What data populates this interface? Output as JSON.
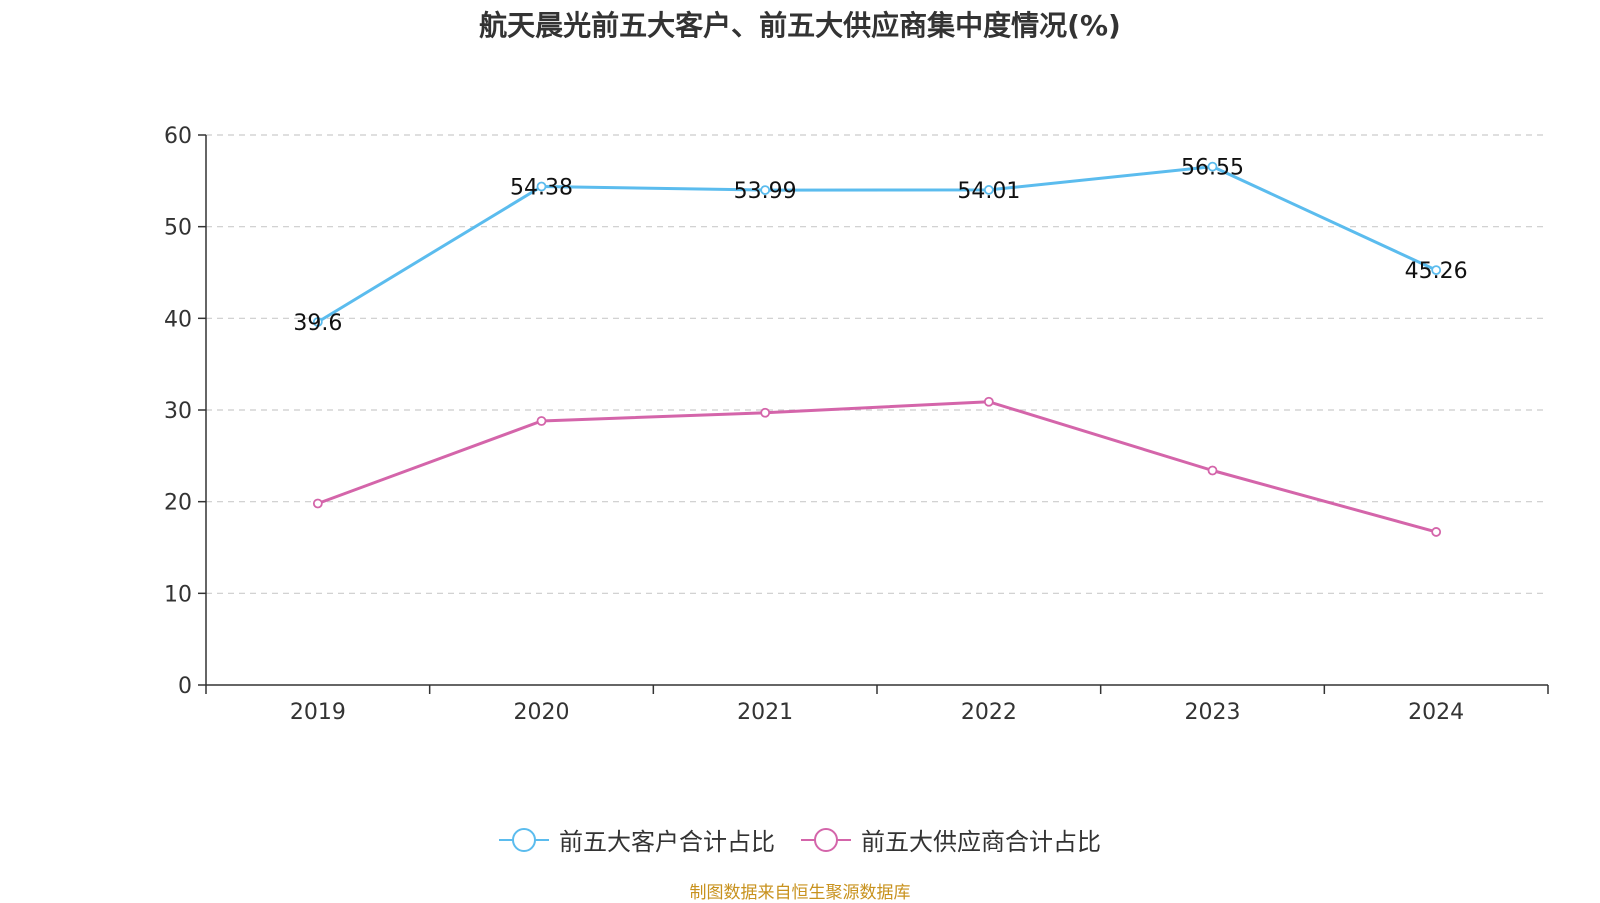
{
  "chart_data": {
    "type": "line",
    "title": "航天晨光前五大客户、前五大供应商集中度情况(%)",
    "categories": [
      "2019",
      "2020",
      "2021",
      "2022",
      "2023",
      "2024"
    ],
    "ylim": [
      0,
      60
    ],
    "yticks": [
      0,
      10,
      20,
      30,
      40,
      50,
      60
    ],
    "grid": true,
    "legend_position": "bottom",
    "series": [
      {
        "name": "前五大客户合计占比",
        "color": "#5bbcee",
        "values": [
          39.6,
          54.38,
          53.99,
          54.01,
          56.55,
          45.26
        ],
        "labels": [
          "39.6",
          "54.38",
          "53.99",
          "54.01",
          "56.55",
          "45.26"
        ]
      },
      {
        "name": "前五大供应商合计占比",
        "color": "#d465aa",
        "values": [
          19.8,
          28.8,
          29.7,
          30.9,
          23.4,
          16.7
        ],
        "labels": []
      }
    ]
  },
  "legend": {
    "customers_label": "前五大客户合计占比",
    "suppliers_label": "前五大供应商合计占比"
  },
  "source": "制图数据来自恒生聚源数据库"
}
